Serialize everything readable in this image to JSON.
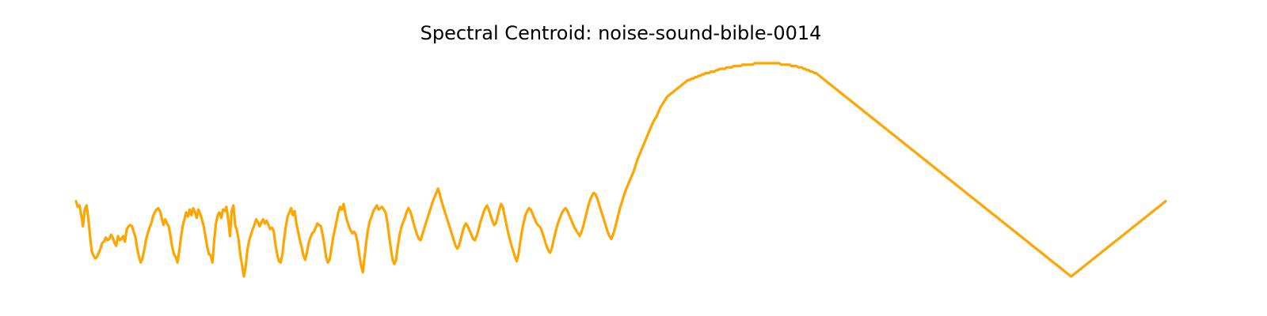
{
  "chart_data": {
    "type": "line",
    "title": "Spectral Centroid: noise-sound-bible-0014",
    "xlabel": "",
    "ylabel": "",
    "axes_visible": false,
    "grid": false,
    "legend": "none",
    "series": [
      {
        "color": "#FFA500",
        "values": [
          0.3,
          0.26,
          0.27,
          0.2,
          0.12,
          0.24,
          0.27,
          0.18,
          0.05,
          -0.06,
          -0.09,
          -0.11,
          -0.1,
          -0.07,
          -0.04,
          0.0,
          0.01,
          0.04,
          0.02,
          0.03,
          0.06,
          0.04,
          0.0,
          -0.02,
          0.05,
          0.02,
          0.03,
          0.05,
          0.01,
          0.1,
          0.12,
          0.13,
          0.12,
          0.08,
          0.04,
          -0.04,
          -0.1,
          -0.14,
          -0.11,
          -0.05,
          0.02,
          0.07,
          0.11,
          0.14,
          0.19,
          0.22,
          0.24,
          0.25,
          0.23,
          0.18,
          0.13,
          0.17,
          0.14,
          0.12,
          0.05,
          -0.03,
          -0.08,
          -0.1,
          -0.14,
          -0.06,
          0.04,
          0.12,
          0.17,
          0.22,
          0.19,
          0.24,
          0.2,
          0.25,
          0.22,
          0.18,
          0.24,
          0.21,
          0.17,
          0.12,
          0.05,
          -0.03,
          -0.08,
          -0.09,
          -0.14,
          0.02,
          0.14,
          0.2,
          0.22,
          0.18,
          0.24,
          0.23,
          0.26,
          0.17,
          0.05,
          0.23,
          0.27,
          0.13,
          0.09,
          0.02,
          -0.09,
          -0.16,
          -0.24,
          -0.17,
          -0.05,
          0.02,
          0.06,
          0.1,
          0.13,
          0.17,
          0.15,
          0.12,
          0.15,
          0.17,
          0.14,
          0.16,
          0.13,
          0.1,
          0.11,
          0.09,
          -0.01,
          -0.08,
          -0.13,
          -0.14,
          -0.08,
          0.03,
          0.12,
          0.19,
          0.22,
          0.25,
          0.2,
          0.23,
          0.14,
          0.08,
          0.02,
          -0.03,
          -0.09,
          -0.12,
          -0.07,
          0.0,
          0.04,
          0.07,
          0.08,
          0.11,
          0.14,
          0.13,
          0.12,
          0.06,
          -0.01,
          -0.1,
          -0.14,
          -0.12,
          -0.04,
          0.04,
          0.1,
          0.16,
          0.22,
          0.26,
          0.24,
          0.28,
          0.21,
          0.16,
          0.12,
          0.09,
          0.07,
          0.08,
          0.06,
          0.0,
          -0.09,
          -0.16,
          -0.21,
          -0.1,
          0.01,
          0.1,
          0.16,
          0.19,
          0.23,
          0.25,
          0.27,
          0.24,
          0.25,
          0.26,
          0.24,
          0.22,
          0.15,
          0.05,
          -0.04,
          -0.12,
          -0.15,
          -0.12,
          -0.02,
          0.06,
          0.11,
          0.15,
          0.18,
          0.22,
          0.25,
          0.23,
          0.19,
          0.14,
          0.1,
          0.06,
          0.03,
          0.02,
          0.06,
          0.1,
          0.14,
          0.18,
          0.22,
          0.26,
          0.3,
          0.33,
          0.36,
          0.39,
          0.35,
          0.3,
          0.26,
          0.22,
          0.18,
          0.14,
          0.1,
          0.06,
          0.02,
          -0.02,
          -0.04,
          -0.02,
          0.03,
          0.08,
          0.12,
          0.14,
          0.12,
          0.09,
          0.06,
          0.03,
          0.02,
          0.05,
          0.09,
          0.14,
          0.18,
          0.22,
          0.25,
          0.27,
          0.24,
          0.2,
          0.16,
          0.13,
          0.14,
          0.19,
          0.24,
          0.28,
          0.26,
          0.2,
          0.14,
          0.08,
          0.03,
          -0.02,
          -0.06,
          -0.1,
          -0.13,
          -0.08,
          0.01,
          0.09,
          0.15,
          0.2,
          0.23,
          0.25,
          0.24,
          0.21,
          0.18,
          0.15,
          0.13,
          0.12,
          0.1,
          0.06,
          0.02,
          -0.02,
          -0.05,
          -0.07,
          -0.04,
          0.02,
          0.07,
          0.12,
          0.16,
          0.19,
          0.22,
          0.24,
          0.25,
          0.23,
          0.2,
          0.17,
          0.14,
          0.11,
          0.09,
          0.07,
          0.05,
          0.08,
          0.12,
          0.17,
          0.22,
          0.27,
          0.31,
          0.34,
          0.36,
          0.35,
          0.32,
          0.28,
          0.24,
          0.2,
          0.16,
          0.12,
          0.08,
          0.05,
          0.03,
          0.06,
          0.1,
          0.15,
          0.2,
          0.25,
          0.29,
          0.33,
          0.37,
          0.4,
          0.43,
          0.46,
          0.49,
          0.52,
          0.56,
          0.6,
          0.63,
          0.66,
          0.69,
          0.72,
          0.75,
          0.78,
          0.81,
          0.84,
          0.87,
          0.89,
          0.91,
          0.94,
          0.97,
          0.99,
          1.01,
          1.03,
          1.05,
          1.06,
          1.07,
          1.08,
          1.09,
          1.1,
          1.11,
          1.12,
          1.13,
          1.14,
          1.15,
          1.16,
          1.17,
          1.17,
          1.18,
          1.18,
          1.19,
          1.19,
          1.2,
          1.2,
          1.21,
          1.21,
          1.22,
          1.22,
          1.22,
          1.23,
          1.23,
          1.23,
          1.24,
          1.24,
          1.25,
          1.25,
          1.25,
          1.25,
          1.26,
          1.26,
          1.26,
          1.26,
          1.27,
          1.27,
          1.27,
          1.27,
          1.27,
          1.28,
          1.28,
          1.28,
          1.28,
          1.28,
          1.28,
          1.28,
          1.29,
          1.29,
          1.29,
          1.29,
          1.29,
          1.29,
          1.29,
          1.29,
          1.29,
          1.29,
          1.29,
          1.29,
          1.29,
          1.29,
          1.29,
          1.28,
          1.28,
          1.28,
          1.28,
          1.28,
          1.28,
          1.27,
          1.27,
          1.27,
          1.27,
          1.26,
          1.26,
          1.26,
          1.25,
          1.25,
          1.24,
          1.24,
          1.23,
          1.23,
          1.22,
          1.22,
          1.21,
          1.2,
          1.19,
          1.18,
          1.17,
          1.16,
          1.15,
          1.14,
          1.13,
          1.12,
          1.11,
          1.1,
          1.09,
          1.08,
          1.07,
          1.06,
          1.05,
          1.04,
          1.03,
          1.02,
          1.01,
          1.0,
          0.99,
          0.98,
          0.97,
          0.96,
          0.95,
          0.94,
          0.93,
          0.92,
          0.91,
          0.9,
          0.89,
          0.88,
          0.87,
          0.86,
          0.85,
          0.84,
          0.83,
          0.82,
          0.81,
          0.8,
          0.79,
          0.78,
          0.77,
          0.76,
          0.75,
          0.74,
          0.73,
          0.72,
          0.71,
          0.7,
          0.69,
          0.68,
          0.67,
          0.66,
          0.65,
          0.64,
          0.63,
          0.62,
          0.61,
          0.6,
          0.59,
          0.58,
          0.57,
          0.56,
          0.55,
          0.54,
          0.53,
          0.52,
          0.51,
          0.5,
          0.49,
          0.48,
          0.47,
          0.46,
          0.45,
          0.44,
          0.43,
          0.42,
          0.41,
          0.4,
          0.39,
          0.38,
          0.37,
          0.36,
          0.35,
          0.34,
          0.33,
          0.32,
          0.31,
          0.3,
          0.29,
          0.28,
          0.27,
          0.26,
          0.25,
          0.24,
          0.23,
          0.22,
          0.21,
          0.2,
          0.19,
          0.18,
          0.17,
          0.16,
          0.15,
          0.14,
          0.13,
          0.12,
          0.11,
          0.1,
          0.09,
          0.08,
          0.07,
          0.06,
          0.05,
          0.04,
          0.03,
          0.02,
          0.01,
          0.0,
          -0.01,
          -0.02,
          -0.03,
          -0.04,
          -0.05,
          -0.06,
          -0.07,
          -0.08,
          -0.09,
          -0.1,
          -0.11,
          -0.12,
          -0.13,
          -0.14,
          -0.15,
          -0.16,
          -0.17,
          -0.18,
          -0.19,
          -0.2,
          -0.21,
          -0.22,
          -0.23,
          -0.24,
          -0.23,
          -0.22,
          -0.21,
          -0.2,
          -0.19,
          -0.18,
          -0.17,
          -0.16,
          -0.15,
          -0.14,
          -0.13,
          -0.12,
          -0.11,
          -0.1,
          -0.09,
          -0.08,
          -0.07,
          -0.06,
          -0.05,
          -0.04,
          -0.03,
          -0.02,
          -0.01,
          0.0,
          0.01,
          0.02,
          0.03,
          0.04,
          0.05,
          0.06,
          0.07,
          0.08,
          0.09,
          0.1,
          0.11,
          0.12,
          0.13,
          0.14,
          0.15,
          0.16,
          0.17,
          0.18,
          0.19,
          0.2,
          0.21,
          0.22,
          0.23,
          0.24,
          0.25,
          0.26,
          0.27,
          0.28,
          0.29,
          0.3
        ]
      }
    ]
  }
}
